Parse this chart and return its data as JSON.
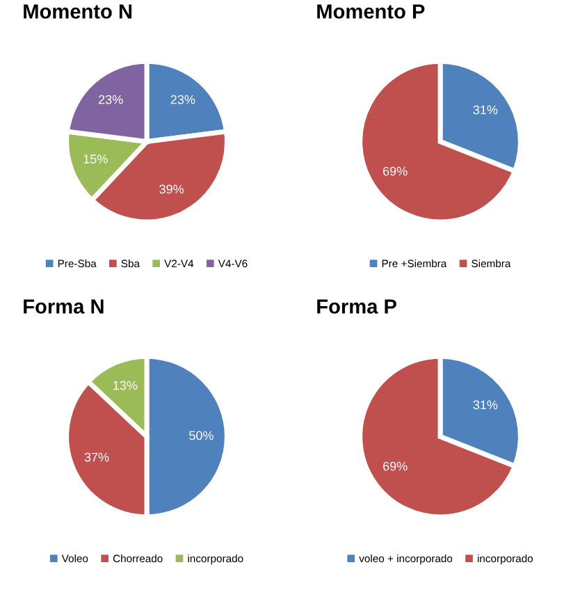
{
  "chart_data": [
    {
      "type": "pie",
      "title": "Momento N",
      "categories": [
        "Pre-Sba",
        "Sba",
        "V2-V4",
        "V4-V6"
      ],
      "values": [
        23,
        39,
        15,
        23
      ],
      "colors": [
        "#4f81bd",
        "#c0504d",
        "#9bbb59",
        "#8064a2"
      ],
      "value_labels": [
        "23%",
        "39%",
        "15%",
        "23%"
      ],
      "legend": "bottom"
    },
    {
      "type": "pie",
      "title": "Momento P",
      "categories": [
        "Pre +Siembra",
        "Siembra"
      ],
      "values": [
        31,
        69
      ],
      "colors": [
        "#4f81bd",
        "#c0504d"
      ],
      "value_labels": [
        "31%",
        "69%"
      ],
      "legend": "bottom"
    },
    {
      "type": "pie",
      "title": "Forma N",
      "categories": [
        "Voleo",
        "Chorreado",
        "incorporado"
      ],
      "values": [
        50,
        37,
        13
      ],
      "colors": [
        "#4f81bd",
        "#c0504d",
        "#9bbb59"
      ],
      "value_labels": [
        "50%",
        "37%",
        "13%"
      ],
      "legend": "bottom"
    },
    {
      "type": "pie",
      "title": "Forma P",
      "categories": [
        "voleo + incorporado",
        "incorporado"
      ],
      "values": [
        31,
        69
      ],
      "colors": [
        "#4f81bd",
        "#c0504d"
      ],
      "value_labels": [
        "31%",
        "69%"
      ],
      "legend": "bottom"
    }
  ]
}
